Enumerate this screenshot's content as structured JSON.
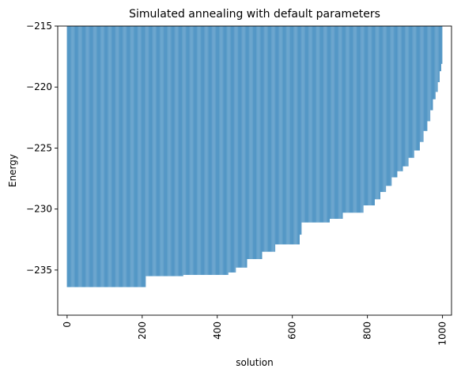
{
  "chart_data": {
    "type": "bar",
    "title": "Simulated annealing with default parameters",
    "xlabel": "solution",
    "ylabel": "Energy",
    "xlim": [
      -25,
      1024
    ],
    "ylim": [
      -238.7,
      -215
    ],
    "x_ticks": [
      0,
      200,
      400,
      600,
      800,
      1000
    ],
    "y_ticks": [
      -235,
      -230,
      -225,
      -220,
      -215
    ],
    "y_tick_labels": [
      "−235",
      "−230",
      "−225",
      "−220",
      "−215"
    ],
    "bar_color": "#1f77b4",
    "grid": false,
    "legend": "none",
    "n_solutions": 1000,
    "description_values": "Sorted energies of 1000 solutions (step profile); each entry gives the energy from a starting solution index onward",
    "energy_steps": [
      {
        "from": 0,
        "energy": -236.4
      },
      {
        "from": 210,
        "energy": -235.5
      },
      {
        "from": 310,
        "energy": -235.4
      },
      {
        "from": 430,
        "energy": -235.2
      },
      {
        "from": 450,
        "energy": -234.8
      },
      {
        "from": 480,
        "energy": -234.1
      },
      {
        "from": 520,
        "energy": -233.5
      },
      {
        "from": 555,
        "energy": -232.9
      },
      {
        "from": 620,
        "energy": -232.1
      },
      {
        "from": 625,
        "energy": -231.1
      },
      {
        "from": 700,
        "energy": -230.8
      },
      {
        "from": 735,
        "energy": -230.3
      },
      {
        "from": 790,
        "energy": -229.7
      },
      {
        "from": 820,
        "energy": -229.2
      },
      {
        "from": 835,
        "energy": -228.6
      },
      {
        "from": 850,
        "energy": -228.1
      },
      {
        "from": 865,
        "energy": -227.4
      },
      {
        "from": 880,
        "energy": -226.9
      },
      {
        "from": 895,
        "energy": -226.5
      },
      {
        "from": 910,
        "energy": -225.8
      },
      {
        "from": 925,
        "energy": -225.2
      },
      {
        "from": 940,
        "energy": -224.5
      },
      {
        "from": 950,
        "energy": -223.6
      },
      {
        "from": 960,
        "energy": -222.8
      },
      {
        "from": 968,
        "energy": -221.9
      },
      {
        "from": 975,
        "energy": -221.0
      },
      {
        "from": 982,
        "energy": -220.4
      },
      {
        "from": 988,
        "energy": -219.6
      },
      {
        "from": 993,
        "energy": -218.7
      },
      {
        "from": 997,
        "energy": -218.1
      }
    ]
  }
}
